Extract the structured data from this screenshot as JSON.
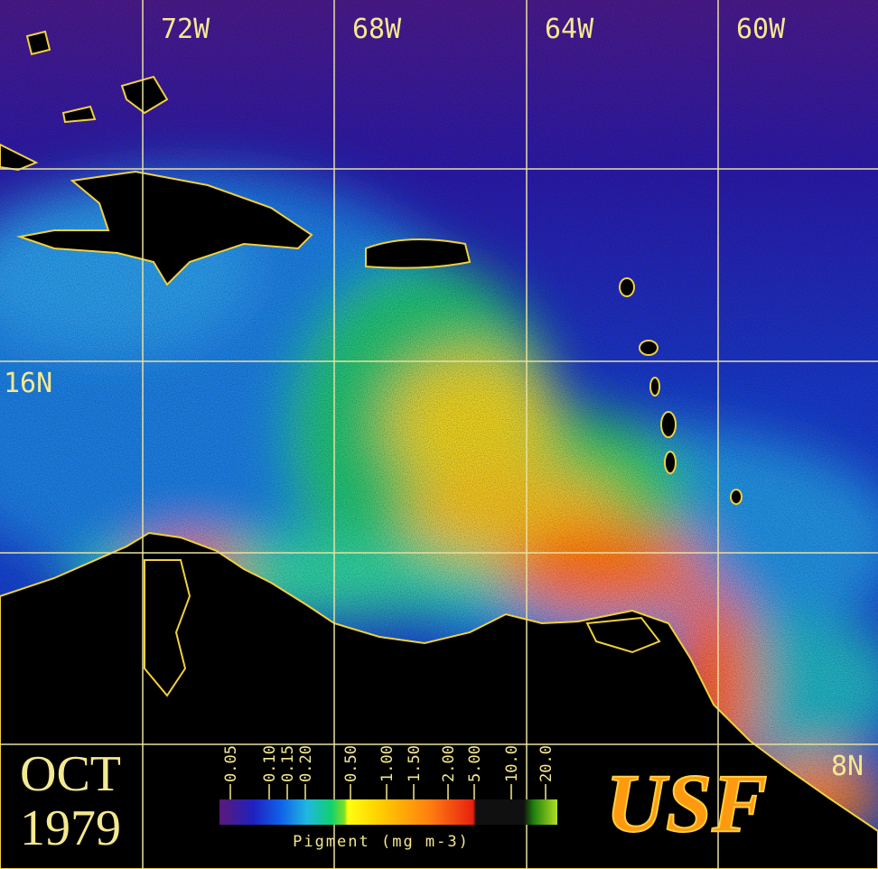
{
  "grid_labels": {
    "longitudes": [
      "72W",
      "68W",
      "64W",
      "60W"
    ],
    "latitudes": [
      "16N",
      "8N"
    ]
  },
  "date": {
    "month": "OCT",
    "year": "1979"
  },
  "logo": "USF",
  "legend": {
    "ticks": [
      "0.05",
      "0.10",
      "0.15",
      "0.20",
      "0.50",
      "1.00",
      "1.50",
      "2.00",
      "5.00",
      "10.0",
      "20.0"
    ],
    "title": "Pigment (mg m-3)"
  }
}
